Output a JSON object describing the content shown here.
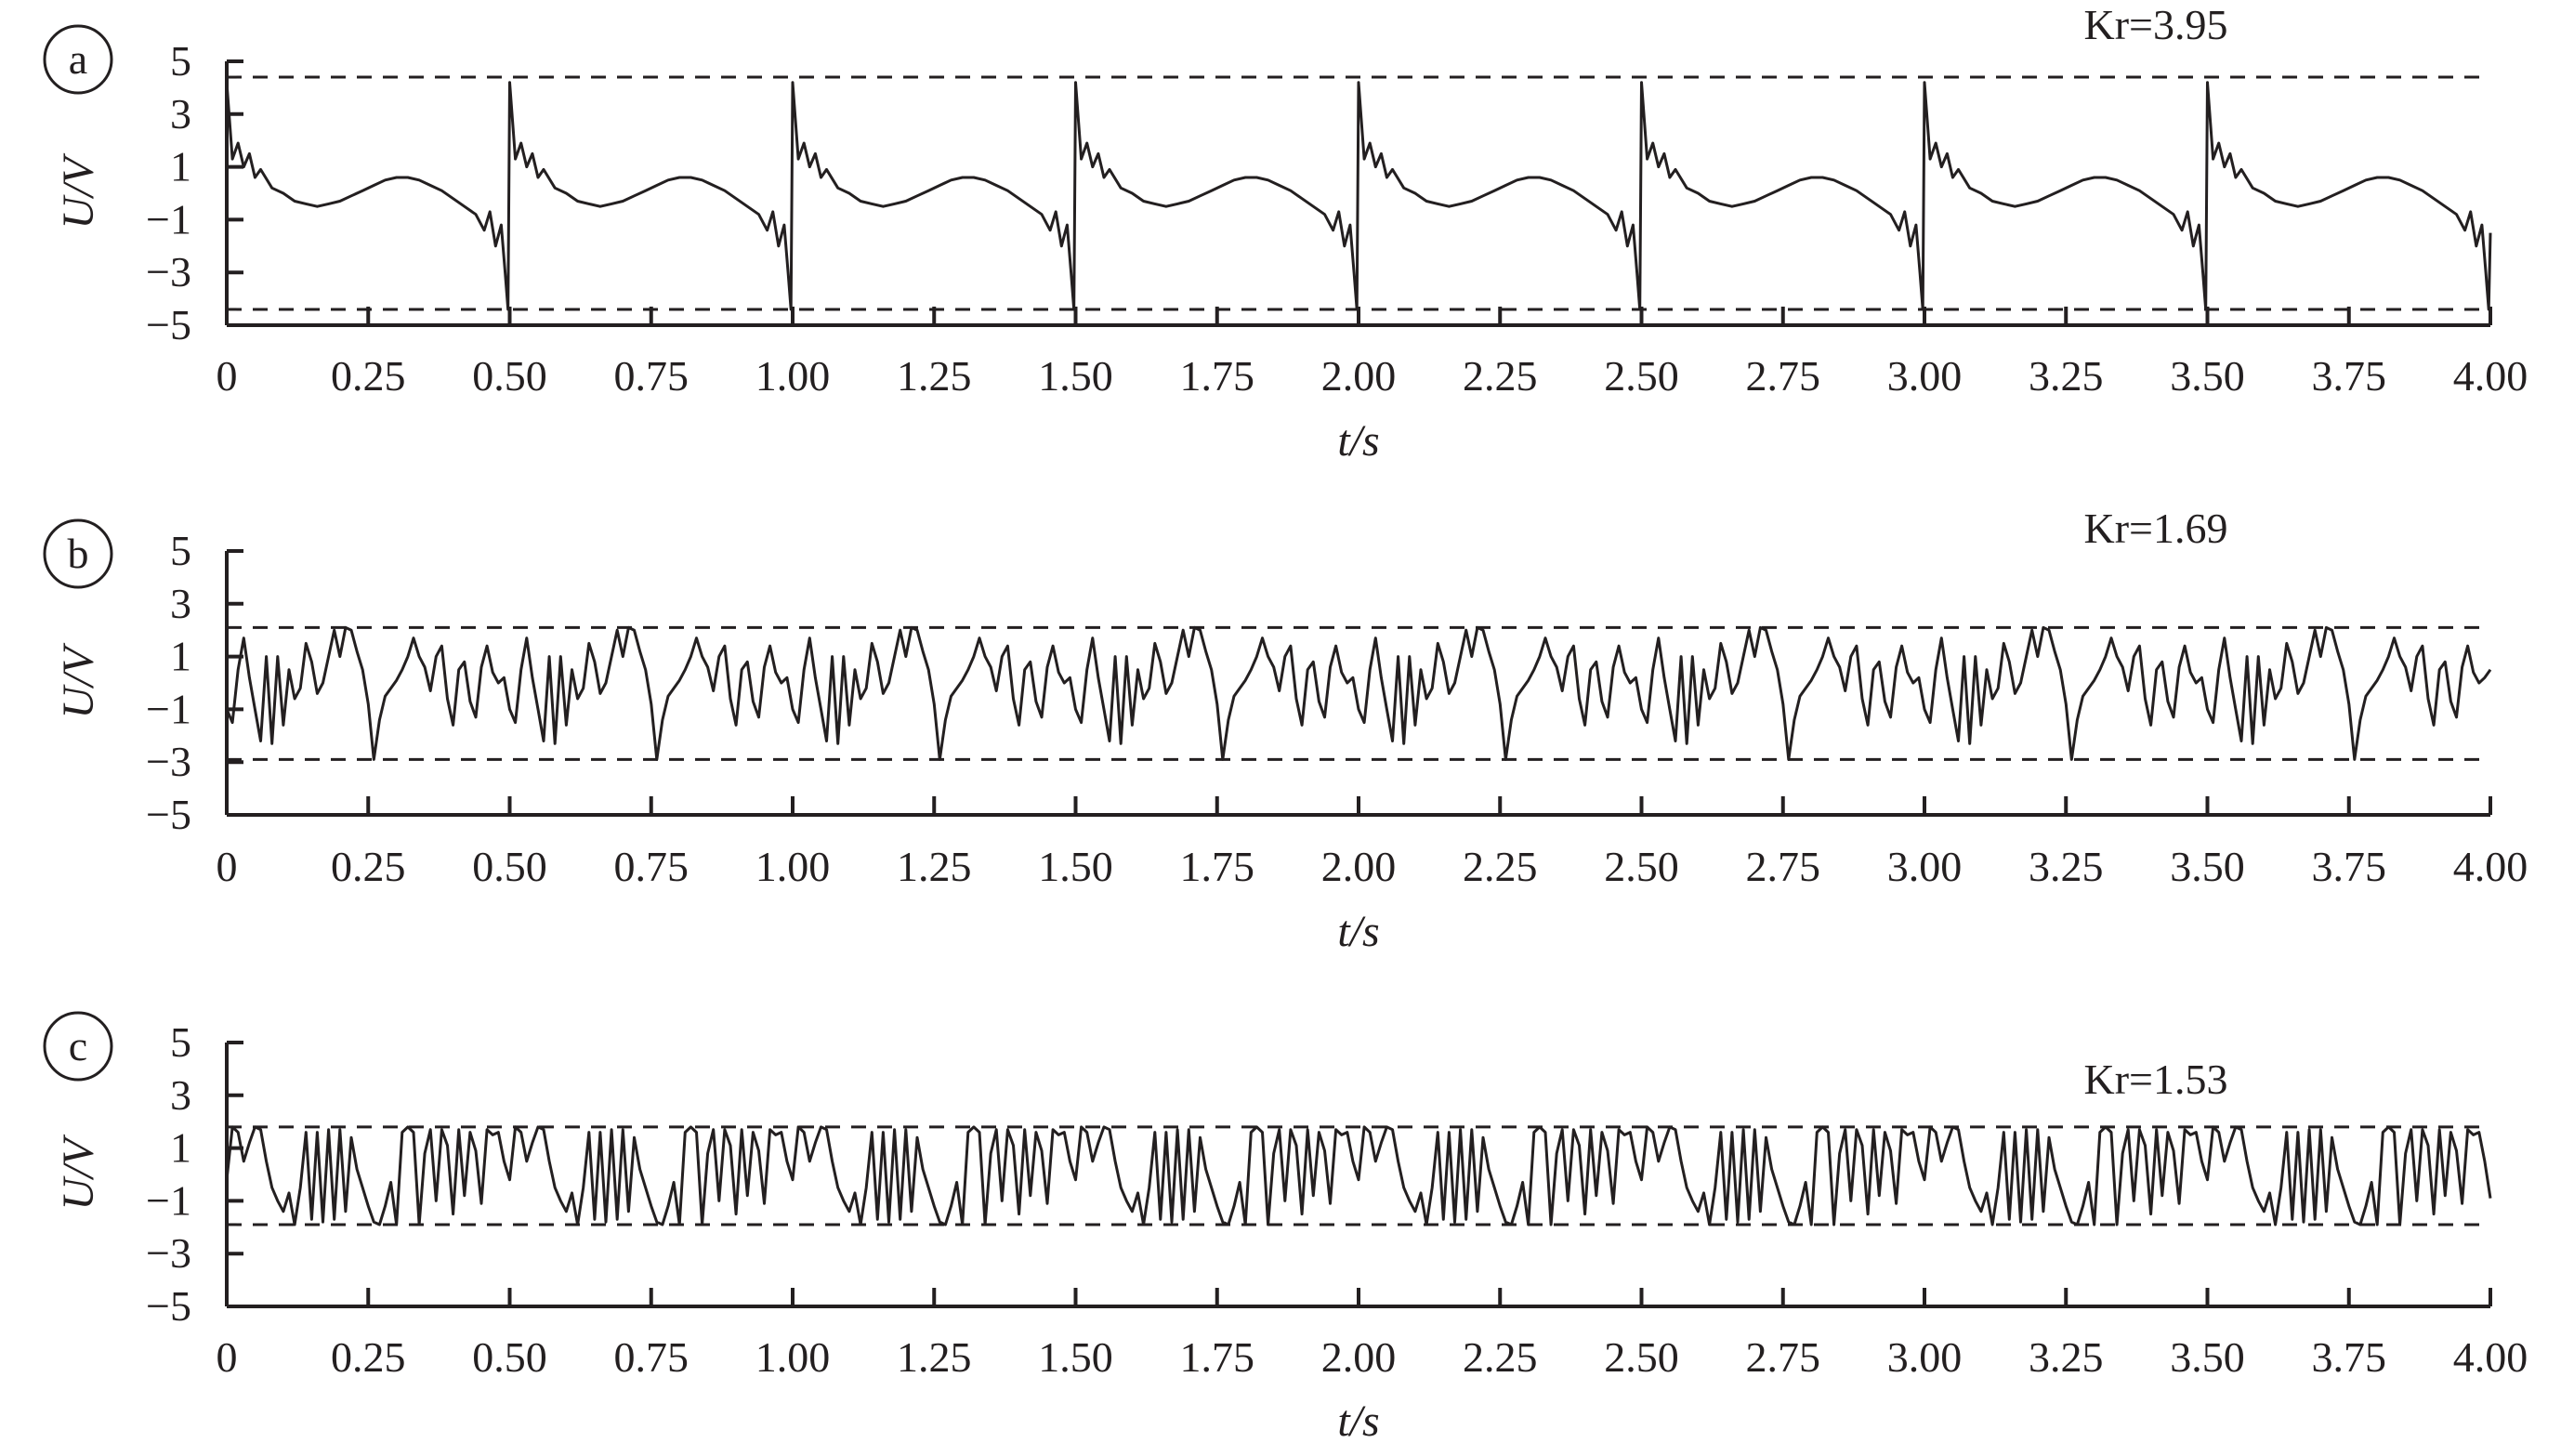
{
  "chart_data": [
    {
      "type": "line",
      "panel": "a",
      "annotation": "Kr=3.95",
      "xlabel": "t/s",
      "ylabel": "U/V",
      "xlim": [
        0,
        4.0
      ],
      "ylim": [
        -5,
        5
      ],
      "x_ticks": [
        "0",
        "0.25",
        "0.50",
        "0.75",
        "1.00",
        "1.25",
        "1.50",
        "1.75",
        "2.00",
        "2.25",
        "2.50",
        "2.75",
        "3.00",
        "3.25",
        "3.50",
        "3.75",
        "4.00"
      ],
      "y_ticks": [
        "5",
        "3",
        "1",
        "−1",
        "−3",
        "−5"
      ],
      "reference_lines": [
        4.4,
        -4.4
      ],
      "series": [
        {
          "period": 0.5,
          "cycle": {
            "x": [
              0,
              0.01,
              0.02,
              0.03,
              0.04,
              0.05,
              0.06,
              0.08,
              0.1,
              0.12,
              0.14,
              0.16,
              0.18,
              0.2,
              0.22,
              0.24,
              0.26,
              0.28,
              0.3,
              0.32,
              0.34,
              0.36,
              0.38,
              0.4,
              0.42,
              0.44,
              0.455,
              0.465,
              0.475,
              0.485,
              0.492,
              0.497,
              0.5
            ],
            "y": [
              4.2,
              1.3,
              1.9,
              1.0,
              1.5,
              0.6,
              0.9,
              0.2,
              0.0,
              -0.3,
              -0.4,
              -0.5,
              -0.4,
              -0.3,
              -0.1,
              0.1,
              0.3,
              0.5,
              0.6,
              0.6,
              0.5,
              0.3,
              0.1,
              -0.2,
              -0.5,
              -0.8,
              -1.4,
              -0.7,
              -2.0,
              -1.2,
              -3.0,
              -4.4,
              4.2
            ]
          },
          "end": {
            "x": 4.0,
            "y": -1.5
          }
        }
      ]
    },
    {
      "type": "line",
      "panel": "b",
      "annotation": "Kr=1.69",
      "xlabel": "t/s",
      "ylabel": "U/V",
      "xlim": [
        0,
        4.0
      ],
      "ylim": [
        -5,
        5
      ],
      "x_ticks": [
        "0",
        "0.25",
        "0.50",
        "0.75",
        "1.00",
        "1.25",
        "1.50",
        "1.75",
        "2.00",
        "2.25",
        "2.50",
        "2.75",
        "3.00",
        "3.25",
        "3.50",
        "3.75",
        "4.00"
      ],
      "y_ticks": [
        "5",
        "3",
        "1",
        "−1",
        "−3",
        "−5"
      ],
      "reference_lines": [
        2.1,
        -2.9
      ],
      "series": [
        {
          "period": 0.5,
          "cycle": {
            "x": [
              0,
              0.01,
              0.02,
              0.03,
              0.04,
              0.05,
              0.06,
              0.07,
              0.08,
              0.09,
              0.1,
              0.11,
              0.12,
              0.13,
              0.14,
              0.15,
              0.16,
              0.17,
              0.18,
              0.19,
              0.2,
              0.21,
              0.22,
              0.23,
              0.24,
              0.25,
              0.26,
              0.27,
              0.28,
              0.29,
              0.3,
              0.31,
              0.32,
              0.33,
              0.34,
              0.35,
              0.36,
              0.37,
              0.38,
              0.39,
              0.4,
              0.41,
              0.42,
              0.43,
              0.44,
              0.45,
              0.46,
              0.47,
              0.48,
              0.49,
              0.5
            ],
            "y": [
              -1.0,
              -1.5,
              0.5,
              1.7,
              0.2,
              -1.0,
              -2.2,
              1.0,
              -2.3,
              1.0,
              -1.6,
              0.5,
              -0.6,
              -0.2,
              1.5,
              0.8,
              -0.4,
              0.0,
              1.0,
              2.0,
              1.0,
              2.1,
              2.0,
              1.2,
              0.5,
              -0.8,
              -2.9,
              -1.4,
              -0.5,
              -0.2,
              0.1,
              0.5,
              1.0,
              1.7,
              1.0,
              0.6,
              -0.3,
              1.0,
              1.4,
              -0.6,
              -1.6,
              0.5,
              0.8,
              -0.7,
              -1.3,
              0.6,
              1.4,
              0.4,
              0.0,
              0.2,
              0.5
            ]
          },
          "end": {
            "x": 4.0,
            "y": 0.5
          }
        }
      ]
    },
    {
      "type": "line",
      "panel": "c",
      "annotation": "Kr=1.53",
      "xlabel": "t/s",
      "ylabel": "U/V",
      "xlim": [
        0,
        4.0
      ],
      "ylim": [
        -5,
        5
      ],
      "x_ticks": [
        "0",
        "0.25",
        "0.50",
        "0.75",
        "1.00",
        "1.25",
        "1.50",
        "1.75",
        "2.00",
        "2.25",
        "2.50",
        "2.75",
        "3.00",
        "3.25",
        "3.50",
        "3.75",
        "4.00"
      ],
      "y_ticks": [
        "5",
        "3",
        "1",
        "−1",
        "−3",
        "−5"
      ],
      "reference_lines": [
        1.8,
        -1.9
      ],
      "series": [
        {
          "period": 0.5,
          "cycle": {
            "x": [
              0,
              0.01,
              0.02,
              0.03,
              0.04,
              0.05,
              0.06,
              0.07,
              0.08,
              0.09,
              0.1,
              0.11,
              0.12,
              0.13,
              0.14,
              0.15,
              0.16,
              0.17,
              0.18,
              0.19,
              0.2,
              0.21,
              0.22,
              0.23,
              0.24,
              0.25,
              0.26,
              0.27,
              0.28,
              0.29,
              0.3,
              0.31,
              0.32,
              0.33,
              0.34,
              0.35,
              0.36,
              0.37,
              0.38,
              0.39,
              0.4,
              0.41,
              0.42,
              0.43,
              0.44,
              0.45,
              0.46,
              0.47,
              0.48,
              0.49,
              0.5
            ],
            "y": [
              -0.2,
              1.8,
              1.6,
              0.5,
              1.2,
              1.8,
              1.7,
              0.5,
              -0.5,
              -1.0,
              -1.4,
              -0.7,
              -1.9,
              -0.5,
              1.6,
              -1.7,
              1.6,
              -1.8,
              1.7,
              -1.7,
              1.7,
              -1.4,
              1.4,
              0.2,
              -0.5,
              -1.2,
              -1.8,
              -1.9,
              -1.2,
              -0.3,
              -1.9,
              1.6,
              1.8,
              1.6,
              -1.9,
              0.8,
              1.7,
              -1.0,
              1.7,
              1.1,
              -1.5,
              1.7,
              -0.8,
              1.6,
              0.9,
              -1.1,
              1.7,
              1.5,
              1.6,
              0.5,
              -0.2
            ]
          },
          "end": {
            "x": 4.0,
            "y": -0.9
          }
        }
      ]
    }
  ]
}
